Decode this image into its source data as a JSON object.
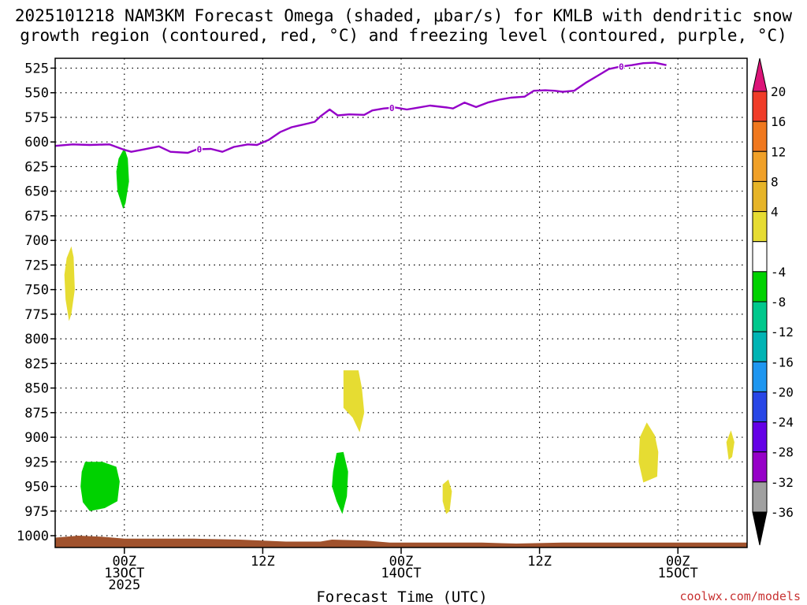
{
  "chart_data": {
    "type": "time-height",
    "title_lines": [
      "2025101218 NAM3KM Forecast Omega (shaded, μbar/s) for KMLB with dendritic snow",
      "growth region (contoured, red, °C) and freezing level (contoured, purple, °C)"
    ],
    "xlabel": "Forecast Time (UTC)",
    "credit": "coolwx.com/models",
    "x_range_hours": [
      18,
      78
    ],
    "x_ticks": [
      {
        "hour": 24,
        "lines": [
          "00Z",
          "13OCT",
          "2025"
        ]
      },
      {
        "hour": 36,
        "lines": [
          "12Z"
        ]
      },
      {
        "hour": 48,
        "lines": [
          "00Z",
          "14OCT"
        ]
      },
      {
        "hour": 60,
        "lines": [
          "12Z"
        ]
      },
      {
        "hour": 72,
        "lines": [
          "00Z",
          "15OCT"
        ]
      }
    ],
    "y_ticks": [
      "525",
      "550",
      "575",
      "600",
      "625",
      "650",
      "675",
      "700",
      "725",
      "750",
      "775",
      "800",
      "825",
      "850",
      "875",
      "900",
      "925",
      "950",
      "975",
      "1000"
    ],
    "y_range_hpa": [
      515,
      1012
    ],
    "freezing_level": {
      "label": "0",
      "label_hours": [
        30.5,
        47.2,
        67.1
      ],
      "points": [
        [
          18,
          604
        ],
        [
          19.5,
          602.5
        ],
        [
          21,
          603
        ],
        [
          22.7,
          602.5
        ],
        [
          24,
          608
        ],
        [
          24.6,
          610
        ],
        [
          25.5,
          608
        ],
        [
          27,
          604.5
        ],
        [
          28,
          610
        ],
        [
          29.5,
          611
        ],
        [
          30.3,
          607.5
        ],
        [
          31.5,
          607
        ],
        [
          32.5,
          610
        ],
        [
          33.5,
          605
        ],
        [
          34.7,
          602.5
        ],
        [
          35.5,
          603
        ],
        [
          36.5,
          598
        ],
        [
          37.5,
          590
        ],
        [
          38.5,
          585
        ],
        [
          40,
          581
        ],
        [
          40.5,
          579.5
        ],
        [
          41,
          574
        ],
        [
          41.8,
          567
        ],
        [
          42.5,
          573
        ],
        [
          43.5,
          572
        ],
        [
          44.8,
          572.5
        ],
        [
          45.5,
          568
        ],
        [
          46.5,
          566
        ],
        [
          47.5,
          565
        ],
        [
          48.5,
          567
        ],
        [
          49.3,
          565.5
        ],
        [
          50.5,
          563
        ],
        [
          52,
          565
        ],
        [
          52.5,
          566
        ],
        [
          53.5,
          560
        ],
        [
          54.5,
          564.5
        ],
        [
          55.5,
          560
        ],
        [
          56.5,
          557
        ],
        [
          57.5,
          555
        ],
        [
          58.7,
          554
        ],
        [
          59.5,
          548
        ],
        [
          60.5,
          547.5
        ],
        [
          61.3,
          548
        ],
        [
          62,
          549
        ],
        [
          63,
          548
        ],
        [
          64,
          540
        ],
        [
          65,
          533
        ],
        [
          66,
          526
        ],
        [
          67,
          523.5
        ],
        [
          68,
          522
        ],
        [
          69,
          520
        ],
        [
          70,
          519.5
        ],
        [
          71,
          522
        ]
      ]
    },
    "omega_blobs": [
      {
        "value_range": [
          -8,
          -4
        ],
        "color": "#00d200",
        "shape": [
          [
            23.5,
            617
          ],
          [
            24.0,
            606
          ],
          [
            24.3,
            617
          ],
          [
            24.4,
            640
          ],
          [
            24.1,
            662
          ],
          [
            23.9,
            668
          ],
          [
            23.4,
            650
          ],
          [
            23.3,
            630
          ]
        ]
      },
      {
        "value_range": [
          4,
          8
        ],
        "color": "#e6dc32",
        "shape": [
          [
            19.0,
            718
          ],
          [
            19.4,
            706
          ],
          [
            19.6,
            717
          ],
          [
            19.7,
            750
          ],
          [
            19.4,
            775
          ],
          [
            19.2,
            782
          ],
          [
            18.9,
            760
          ],
          [
            18.8,
            735
          ]
        ]
      },
      {
        "value_range": [
          -8,
          -4
        ],
        "color": "#00d200",
        "shape": [
          [
            20.3,
            935
          ],
          [
            20.6,
            925
          ],
          [
            22.1,
            925
          ],
          [
            23.3,
            930
          ],
          [
            23.6,
            945
          ],
          [
            23.4,
            965
          ],
          [
            22.3,
            972
          ],
          [
            21.0,
            975
          ],
          [
            20.4,
            966
          ],
          [
            20.2,
            950
          ]
        ]
      },
      {
        "value_range": [
          4,
          8
        ],
        "color": "#e6dc32",
        "shape": [
          [
            43.0,
            832
          ],
          [
            44.3,
            832
          ],
          [
            44.6,
            850
          ],
          [
            44.8,
            875
          ],
          [
            44.4,
            895
          ],
          [
            43.8,
            880
          ],
          [
            43.0,
            870
          ]
        ]
      },
      {
        "value_range": [
          -8,
          -4
        ],
        "color": "#00d200",
        "shape": [
          [
            42.1,
            935
          ],
          [
            42.4,
            916
          ],
          [
            43.0,
            915
          ],
          [
            43.4,
            935
          ],
          [
            43.3,
            960
          ],
          [
            42.9,
            978
          ],
          [
            42.4,
            965
          ],
          [
            42.0,
            950
          ]
        ]
      },
      {
        "value_range": [
          4,
          8
        ],
        "color": "#e6dc32",
        "shape": [
          [
            51.6,
            948
          ],
          [
            52.1,
            943
          ],
          [
            52.4,
            955
          ],
          [
            52.2,
            975
          ],
          [
            51.9,
            978
          ],
          [
            51.6,
            965
          ]
        ]
      },
      {
        "value_range": [
          4,
          8
        ],
        "color": "#e6dc32",
        "shape": [
          [
            68.7,
            900
          ],
          [
            69.3,
            885
          ],
          [
            70.0,
            898
          ],
          [
            70.3,
            915
          ],
          [
            70.2,
            940
          ],
          [
            69.0,
            946
          ],
          [
            68.6,
            925
          ]
        ]
      },
      {
        "value_range": [
          4,
          8
        ],
        "color": "#e6dc32",
        "shape": [
          [
            76.2,
            905
          ],
          [
            76.6,
            893
          ],
          [
            76.9,
            905
          ],
          [
            76.7,
            920
          ],
          [
            76.4,
            923
          ]
        ]
      }
    ],
    "terrain": {
      "color": "#a0522d",
      "points": [
        [
          18,
          1002
        ],
        [
          20,
          1000
        ],
        [
          22,
          1001
        ],
        [
          24,
          1003
        ],
        [
          26,
          1003
        ],
        [
          30,
          1003
        ],
        [
          34,
          1004
        ],
        [
          36,
          1005
        ],
        [
          38,
          1006
        ],
        [
          41,
          1006
        ],
        [
          42,
          1004
        ],
        [
          45,
          1005
        ],
        [
          47,
          1007
        ],
        [
          55,
          1007
        ],
        [
          58,
          1008
        ],
        [
          62,
          1007
        ],
        [
          68,
          1007
        ],
        [
          76,
          1007
        ],
        [
          78,
          1007
        ]
      ]
    },
    "colorbar": {
      "ticks": [
        "20",
        "16",
        "12",
        "8",
        "4",
        "-4",
        "-8",
        "-12",
        "-16",
        "-20",
        "-24",
        "-28",
        "-32",
        "-36"
      ],
      "colors": [
        "#dc1478",
        "#f03c28",
        "#f0781e",
        "#f0a028",
        "#e6b428",
        "#e6dc32",
        "#ffffff",
        "#00d200",
        "#00c88c",
        "#00b4b4",
        "#1e96f0",
        "#2846e6",
        "#6400e6",
        "#9600c8",
        "#a0a0a0",
        "#000000"
      ]
    }
  }
}
